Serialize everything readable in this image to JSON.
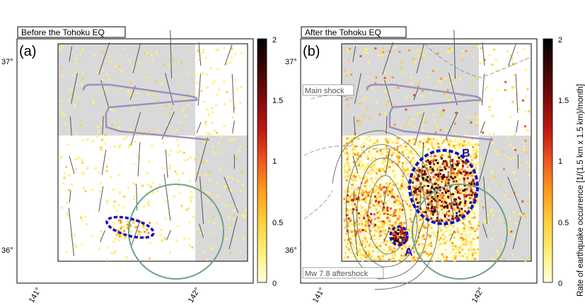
{
  "panels": [
    {
      "title": "Before the Tohoku EQ",
      "letter": "(a)",
      "lat_labels": [
        "37°",
        "36°"
      ],
      "lon_labels": [
        "141°",
        "142°"
      ]
    },
    {
      "title": "After the Tohoku EQ",
      "letter": "(b)",
      "lat_labels": [
        "37°",
        "36°"
      ],
      "lon_labels": [
        "141°",
        "142°"
      ],
      "annotations": {
        "main_shock": "Main shock",
        "aftershock": "Mw 7.8 aftershock",
        "label_a": "A",
        "label_b": "B"
      }
    }
  ],
  "colorbar": {
    "label": "Rate of earthquake occurrence [1/(1.5 km x 1.5 km)/month]",
    "ticks": [
      "2",
      "1.5",
      "1",
      "0.5",
      "0"
    ],
    "colormap": [
      "#ffffe0",
      "#ffef7a",
      "#ffcf3a",
      "#ff9a1a",
      "#ee5520",
      "#c21a12",
      "#7e0b0a",
      "#3c0404",
      "#000000"
    ]
  },
  "colors": {
    "land": "#d9d9d9",
    "fault_outline": "#9d8fc0",
    "circle": "#6f9f8f",
    "highlight": "#1010c8"
  }
}
